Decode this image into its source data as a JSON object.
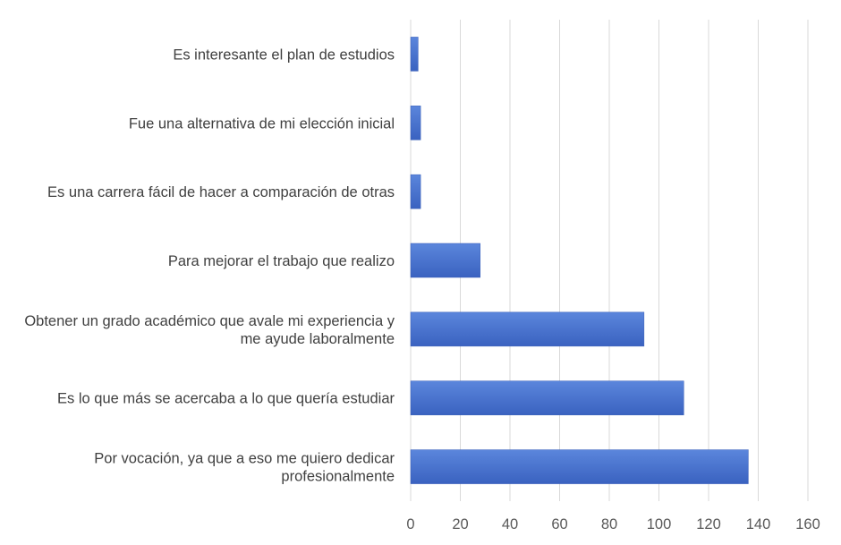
{
  "chart_data": {
    "type": "bar",
    "orientation": "horizontal",
    "categories": [
      [
        "Es interesante el plan de estudios"
      ],
      [
        "Fue una alternativa de mi elección inicial"
      ],
      [
        "Es una carrera fácil de hacer a comparación de otras"
      ],
      [
        "Para mejorar el trabajo que realizo"
      ],
      [
        "Obtener un grado académico que avale mi experiencia y",
        "me ayude laboralmente"
      ],
      [
        "Es lo que más se acercaba a lo que quería estudiar"
      ],
      [
        "Por vocación, ya que a eso me quiero dedicar",
        "profesionalmente"
      ]
    ],
    "values": [
      3,
      4,
      4,
      28,
      94,
      110,
      136
    ],
    "xlim": [
      0,
      160
    ],
    "xticks": [
      "0",
      "20",
      "40",
      "60",
      "80",
      "100",
      "120",
      "140",
      "160"
    ],
    "title": "",
    "xlabel": "",
    "ylabel": "",
    "grid": true,
    "legend": "none",
    "colors": {
      "bar_top": "#5b86dc",
      "bar_bottom": "#3a62c0",
      "bar_edge": "#3a5fb8",
      "grid": "#d9d9d9",
      "text": "#404040",
      "tick_text": "#595959"
    }
  }
}
